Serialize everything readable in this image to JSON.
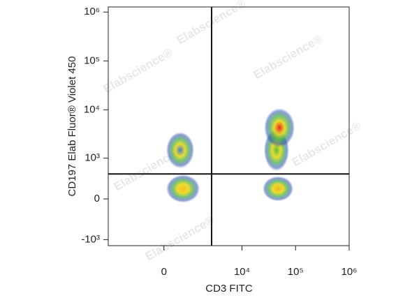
{
  "chart_data": {
    "type": "density",
    "x_label": "CD3 FITC",
    "y_label": "CD197 Elab Fluor® Violet 450",
    "watermark": "Elabscience®",
    "scale": "biexponential",
    "xlim": [
      -3800,
      1000000
    ],
    "ylim": [
      -1340,
      1270000
    ],
    "xticks": [
      0,
      {
        "value": 10000,
        "label": "10⁴"
      },
      {
        "value": 100000,
        "label": "10⁵"
      },
      {
        "value": 1000000,
        "label": "10⁶"
      }
    ],
    "yticks": [
      {
        "value": -1000,
        "label": "-10³"
      },
      0,
      {
        "value": 1000,
        "label": "10³"
      },
      {
        "value": 10000,
        "label": "10⁴"
      },
      {
        "value": 100000,
        "label": "10⁵"
      },
      {
        "value": 1000000,
        "label": "10⁶"
      }
    ],
    "gate": {
      "x": 2670,
      "y": 440
    },
    "populations": [
      {
        "x": 640,
        "y": 150,
        "color": "#f2c21b"
      },
      {
        "x": 530,
        "y": 1480,
        "color": "#3f7fd0"
      },
      {
        "x": 47000,
        "y": 150,
        "color": "#f0b81a"
      },
      {
        "x": 44000,
        "y": 1480,
        "color": "#5fbf3a"
      },
      {
        "x": 50000,
        "y": 4300,
        "color": "#e8261c"
      }
    ]
  }
}
